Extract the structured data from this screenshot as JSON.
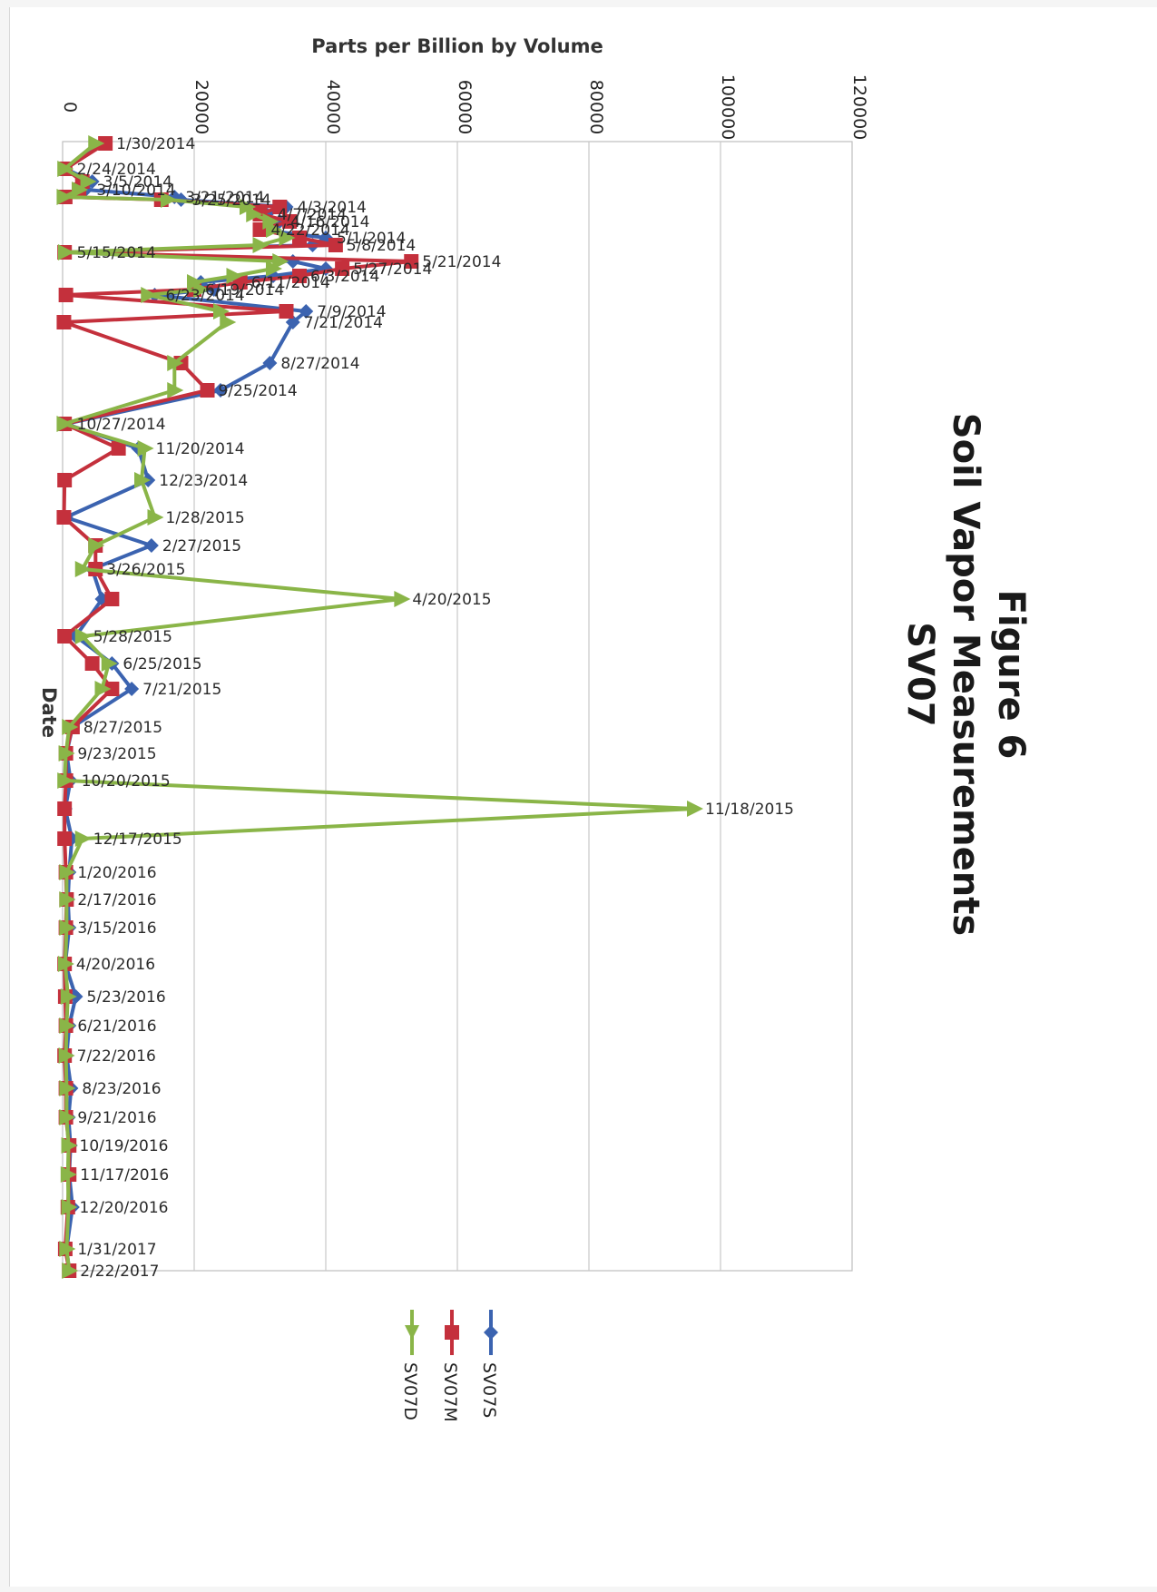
{
  "chart_data": {
    "type": "line",
    "title": "Figure 6",
    "subtitle_lines": [
      "Soil Vapor Measurements",
      "SV07"
    ],
    "xlabel": "Date",
    "ylabel": "Parts per Billion by Volume",
    "ylim": [
      0,
      120000
    ],
    "yticks": [
      "0",
      "20000",
      "40000",
      "60000",
      "80000",
      "100000",
      "120000"
    ],
    "grid": true,
    "legend_position": "bottom",
    "x": [
      "1/30/2014",
      "2/24/2014",
      "3/5/2014",
      "3/10/2014",
      "3/21/2014",
      "3/25/2014",
      "4/3/2014",
      "4/7/2014",
      "4/16/2014",
      "4/22/2014",
      "5/1/2014",
      "5/8/2014",
      "5/15/2014",
      "5/21/2014",
      "5/27/2014",
      "6/3/2014",
      "6/11/2014",
      "6/19/2014",
      "6/23/2014",
      "7/9/2014",
      "7/21/2014",
      "8/27/2014",
      "9/25/2014",
      "10/27/2014",
      "11/20/2014",
      "12/23/2014",
      "1/28/2015",
      "2/27/2015",
      "3/26/2015",
      "4/20/2015",
      "5/28/2015",
      "6/25/2015",
      "7/21/2015",
      "8/27/2015",
      "9/23/2015",
      "10/20/2015",
      "11/18/2015",
      "12/17/2015",
      "1/20/2016",
      "2/17/2016",
      "3/15/2016",
      "4/20/2016",
      "5/23/2016",
      "6/21/2016",
      "7/22/2016",
      "8/23/2016",
      "9/21/2016",
      "10/19/2016",
      "11/17/2016",
      "12/20/2016",
      "1/31/2017",
      "2/22/2017"
    ],
    "series": [
      {
        "name": "SV07S",
        "color": "#3b63b0",
        "marker": "diamond",
        "values": [
          6000,
          500,
          4500,
          3500,
          17000,
          18000,
          34000,
          31000,
          33000,
          30000,
          40000,
          38000,
          500,
          35000,
          40000,
          32000,
          21000,
          23000,
          14000,
          37000,
          35000,
          31500,
          24000,
          500,
          11500,
          13000,
          500,
          13500,
          4500,
          6000,
          2000,
          7500,
          10500,
          1500,
          600,
          1200,
          400,
          1400,
          1000,
          800,
          1000,
          400,
          2000,
          1000,
          600,
          1300,
          900,
          1200,
          1000,
          1500,
          600,
          1000
        ]
      },
      {
        "name": "SV07M",
        "color": "#c4303c",
        "marker": "square",
        "values": [
          6500,
          400,
          3000,
          2500,
          400,
          15000,
          33000,
          30000,
          34500,
          30000,
          36000,
          41500,
          300,
          53000,
          42500,
          36000,
          27000,
          20000,
          500,
          34000,
          200,
          18000,
          22000,
          300,
          8500,
          300,
          200,
          5000,
          5000,
          7500,
          300,
          4500,
          7500,
          1500,
          500,
          500,
          300,
          300,
          500,
          600,
          500,
          300,
          400,
          500,
          300,
          500,
          500,
          1000,
          1000,
          800,
          400,
          1000
        ]
      },
      {
        "name": "SV07D",
        "color": "#8ab548",
        "marker": "triangle",
        "values": [
          5000,
          300,
          3800,
          2500,
          200,
          16000,
          28000,
          29000,
          31500,
          32000,
          34000,
          30000,
          400,
          33000,
          32000,
          26000,
          20000,
          21000,
          13000,
          24000,
          25000,
          17000,
          17000,
          200,
          12500,
          12000,
          14000,
          5000,
          3000,
          51500,
          3000,
          7000,
          6000,
          1000,
          500,
          300,
          96000,
          3000,
          600,
          600,
          600,
          400,
          800,
          600,
          500,
          600,
          600,
          900,
          800,
          900,
          600,
          1000
        ]
      }
    ],
    "annotation_series": "SV07D",
    "annotations": [
      {
        "x": "1/30/2014",
        "series": "SV07M"
      },
      {
        "x": "2/24/2014",
        "series": "SV07S"
      },
      {
        "x": "3/5/2014",
        "series": "SV07S"
      },
      {
        "x": "3/10/2014",
        "series": "SV07S"
      },
      {
        "x": "3/21/2014",
        "series": "SV07S"
      },
      {
        "x": "3/25/2014",
        "series": "SV07S"
      },
      {
        "x": "4/3/2014",
        "series": "SV07S"
      },
      {
        "x": "4/7/2014",
        "series": "SV07S"
      },
      {
        "x": "4/16/2014",
        "series": "SV07S"
      },
      {
        "x": "4/22/2014",
        "series": "SV07S"
      },
      {
        "x": "5/1/2014",
        "series": "SV07S"
      },
      {
        "x": "5/8/2014",
        "series": "SV07M"
      },
      {
        "x": "5/15/2014",
        "series": "SV07S"
      },
      {
        "x": "5/21/2014",
        "series": "SV07M"
      },
      {
        "x": "5/27/2014",
        "series": "SV07M"
      },
      {
        "x": "6/3/2014",
        "series": "SV07M"
      },
      {
        "x": "6/11/2014",
        "series": "SV07M"
      },
      {
        "x": "6/19/2014",
        "series": "SV07M"
      },
      {
        "x": "6/23/2014",
        "series": "SV07S"
      },
      {
        "x": "7/9/2014",
        "series": "SV07S"
      },
      {
        "x": "7/21/2014",
        "series": "SV07S"
      },
      {
        "x": "8/27/2014",
        "series": "SV07S"
      },
      {
        "x": "9/25/2014",
        "series": "SV07M"
      },
      {
        "x": "10/27/2014",
        "series": "SV07S"
      },
      {
        "x": "11/20/2014",
        "series": "SV07D"
      },
      {
        "x": "12/23/2014",
        "series": "SV07S"
      },
      {
        "x": "1/28/2015",
        "series": "SV07D"
      },
      {
        "x": "2/27/2015",
        "series": "SV07S"
      },
      {
        "x": "3/26/2015",
        "series": "SV07M"
      },
      {
        "x": "4/20/2015",
        "series": "SV07D"
      },
      {
        "x": "5/28/2015",
        "series": "SV07D"
      },
      {
        "x": "6/25/2015",
        "series": "SV07S"
      },
      {
        "x": "7/21/2015",
        "series": "SV07S"
      },
      {
        "x": "8/27/2015",
        "series": "SV07S"
      },
      {
        "x": "9/23/2015",
        "series": "SV07S"
      },
      {
        "x": "10/20/2015",
        "series": "SV07S"
      },
      {
        "x": "11/18/2015",
        "series": "SV07D"
      },
      {
        "x": "12/17/2015",
        "series": "SV07D"
      },
      {
        "x": "1/20/2016",
        "series": "SV07D"
      },
      {
        "x": "2/17/2016",
        "series": "SV07D"
      },
      {
        "x": "3/15/2016",
        "series": "SV07D"
      },
      {
        "x": "4/20/2016",
        "series": "SV07D"
      },
      {
        "x": "5/23/2016",
        "series": "SV07S"
      },
      {
        "x": "6/21/2016",
        "series": "SV07D"
      },
      {
        "x": "7/22/2016",
        "series": "SV07D"
      },
      {
        "x": "8/23/2016",
        "series": "SV07S"
      },
      {
        "x": "9/21/2016",
        "series": "SV07D"
      },
      {
        "x": "10/19/2016",
        "series": "SV07D"
      },
      {
        "x": "11/17/2016",
        "series": "SV07M"
      },
      {
        "x": "12/20/2016",
        "series": "SV07D"
      },
      {
        "x": "1/31/2017",
        "series": "SV07D"
      },
      {
        "x": "2/22/2017",
        "series": "SV07D"
      }
    ]
  }
}
